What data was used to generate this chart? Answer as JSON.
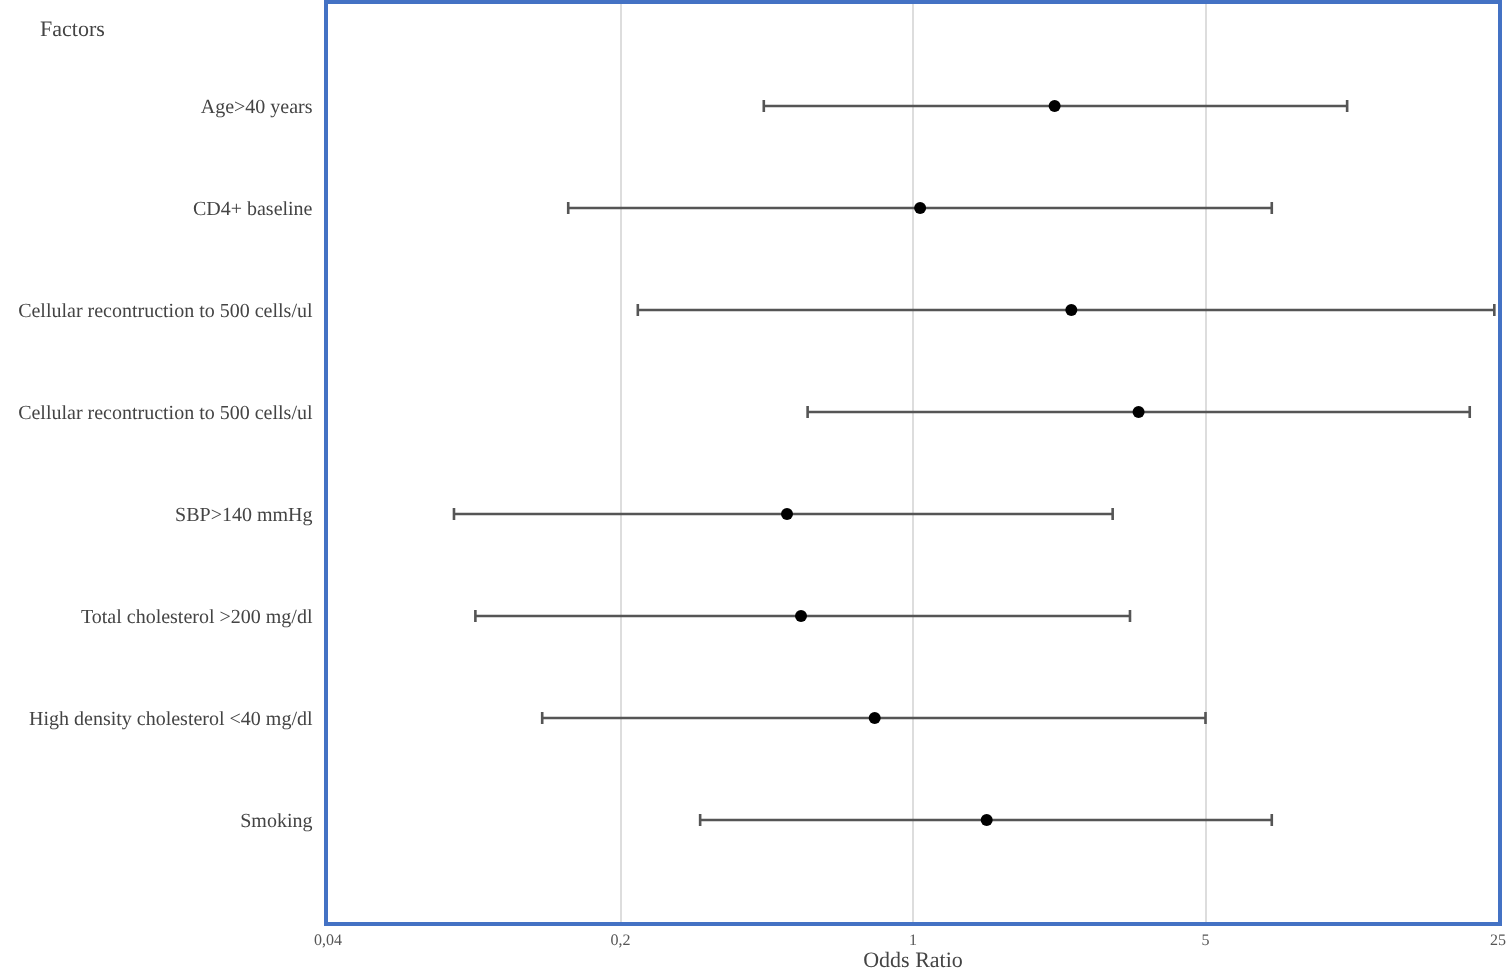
{
  "chart_data": {
    "type": "scatter",
    "orientation": "horizontal",
    "xlabel": "Odds Ratio",
    "ylabel": "Factors",
    "categories": [
      "Age>40 years",
      "CD4+ baseline",
      "Cellular recontruction to 500 cells/ul",
      "Cellular recontruction to 500 cells/ul",
      "SBP>140 mmHg",
      "Total cholesterol >200 mg/dl",
      "High density cholesterol <40 mg/dl",
      "Smoking"
    ],
    "values": [
      2.18,
      1.04,
      2.39,
      3.46,
      0.5,
      0.54,
      0.81,
      1.5
    ],
    "errors": [
      [
        0.44,
        10.9
      ],
      [
        0.15,
        7.2
      ],
      [
        0.22,
        24.5
      ],
      [
        0.56,
        21.4
      ],
      [
        0.08,
        3.0
      ],
      [
        0.09,
        3.3
      ],
      [
        0.13,
        5.0
      ],
      [
        0.31,
        7.2
      ]
    ],
    "color": "#000000",
    "marker": "circle",
    "log": "x",
    "xlim": [
      0.04,
      25
    ],
    "xticks": [
      {
        "value": 0.04,
        "label": "0,04"
      },
      {
        "value": 0.2,
        "label": "0,2"
      },
      1,
      5,
      25
    ],
    "grid": "x"
  }
}
